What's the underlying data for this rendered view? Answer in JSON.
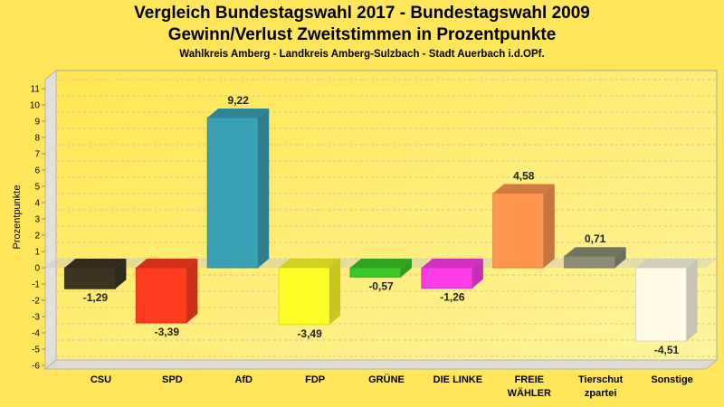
{
  "chart_data": {
    "type": "bar",
    "title": "Vergleich Bundestagswahl 2017 - Bundestagswahl 2009",
    "subtitle": "Gewinn/Verlust Zweitstimmen in Prozentpunkte",
    "subsubtitle": "Wahlkreis Amberg - Landkreis Amberg-Sulzbach - Stadt Auerbach i.d.OPf.",
    "xlabel": "",
    "ylabel": "Prozentpunkte",
    "ylim": [
      -6,
      11
    ],
    "yticks": [
      "11",
      "10",
      "9",
      "8",
      "7",
      "6",
      "5",
      "4",
      "3",
      "2",
      "1",
      "0",
      "-1",
      "-2",
      "-3",
      "-4",
      "-5",
      "-6"
    ],
    "grid": true,
    "legend": "none",
    "categories": [
      [
        "CSU"
      ],
      [
        "SPD"
      ],
      [
        "AfD"
      ],
      [
        "FDP"
      ],
      [
        "GRÜNE"
      ],
      [
        "DIE LINKE"
      ],
      [
        "FREIE",
        "WÄHLER"
      ],
      [
        "Tierschut",
        "zpartei"
      ],
      [
        "Sonstige"
      ]
    ],
    "values": [
      -1.29,
      -3.39,
      9.22,
      -3.49,
      -0.57,
      -1.26,
      4.58,
      0.71,
      -4.51
    ],
    "value_labels": [
      "-1,29",
      "-3,39",
      "9,22",
      "-3,49",
      "-0,57",
      "-1,26",
      "4,58",
      "0,71",
      "-4,51"
    ],
    "colors": [
      "#3a3520",
      "#ff3c1e",
      "#3aa0b4",
      "#ffff28",
      "#3cc828",
      "#ff3ce6",
      "#ff9650",
      "#8c8c78",
      "#fffbe6"
    ]
  }
}
